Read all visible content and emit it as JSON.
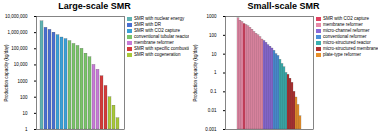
{
  "chart_data": [
    {
      "type": "bar",
      "title": "Large-scale SMR",
      "ylabel": "Production capacity (kg/day)",
      "log": "y",
      "grid": false,
      "legend": "right",
      "tick_labels": "y",
      "categories": [
        null,
        null,
        null,
        null,
        null,
        null,
        null,
        null,
        null,
        null,
        null,
        null,
        null,
        null,
        null,
        null,
        null,
        null,
        null,
        null
      ],
      "ylim": [
        1,
        10000000
      ],
      "yticks": [
        1,
        10,
        100,
        1000,
        {
          "value": 10000,
          "label": "10,000"
        },
        {
          "value": 100000,
          "label": "100,000"
        },
        {
          "value": 1000000,
          "label": "1,000,000"
        },
        {
          "value": 10000000,
          "label": "10,000,000"
        }
      ],
      "series": [
        {
          "name": "SMR with nuclear energy",
          "color": "#5fb3b3",
          "values": [
            5000000,
            null,
            null,
            null,
            null,
            null,
            null,
            null,
            null,
            null,
            null,
            null,
            null,
            null,
            null,
            null,
            null,
            null,
            null,
            null
          ]
        },
        {
          "name": "SMR with DR",
          "color": "#4a6fd1",
          "values": [
            null,
            2000000,
            1500000,
            1000000,
            null,
            null,
            null,
            null,
            null,
            null,
            null,
            null,
            null,
            null,
            null,
            null,
            null,
            null,
            null,
            null
          ]
        },
        {
          "name": "SMR with CO2 capture",
          "color": "#3aa0d8",
          "values": [
            null,
            null,
            null,
            null,
            700000,
            500000,
            400000,
            null,
            null,
            null,
            null,
            null,
            null,
            null,
            null,
            null,
            null,
            null,
            null,
            null
          ]
        },
        {
          "name": "conventional tubular reactor",
          "color": "#7ac36a",
          "values": [
            null,
            null,
            null,
            null,
            null,
            null,
            null,
            300000,
            200000,
            150000,
            100000,
            50000,
            30000,
            null,
            null,
            null,
            null,
            null,
            null,
            null
          ]
        },
        {
          "name": "membrane reformer",
          "color": "#c77ad6",
          "values": [
            null,
            null,
            null,
            null,
            null,
            null,
            null,
            null,
            null,
            null,
            null,
            null,
            null,
            10000,
            5000,
            null,
            null,
            null,
            null,
            null
          ]
        },
        {
          "name": "SMR with specific combustion",
          "color": "#d43a3a",
          "values": [
            null,
            null,
            null,
            null,
            null,
            null,
            null,
            null,
            null,
            null,
            null,
            null,
            null,
            null,
            null,
            2000,
            500,
            null,
            null,
            null
          ]
        },
        {
          "name": "SMR with cogeneration",
          "color": "#a8c83a",
          "values": [
            null,
            null,
            null,
            null,
            null,
            null,
            null,
            null,
            null,
            null,
            null,
            null,
            null,
            null,
            null,
            null,
            null,
            100,
            30,
            5
          ]
        }
      ]
    },
    {
      "type": "bar",
      "title": "Small-scale SMR",
      "ylabel": "Production capacity (kg/day)",
      "log": "y",
      "grid": false,
      "legend": "right",
      "tick_labels": "y",
      "categories": [
        null,
        null,
        null,
        null,
        null,
        null,
        null,
        null,
        null,
        null,
        null,
        null,
        null,
        null,
        null,
        null,
        null,
        null,
        null,
        null,
        null,
        null,
        null,
        null,
        null,
        null,
        null,
        null,
        null,
        null,
        null,
        null
      ],
      "ylim": [
        0.001,
        1000
      ],
      "yticks": [
        0.001,
        0.01,
        0.1,
        1,
        10,
        100,
        1000
      ],
      "series": [
        {
          "name": "SMR with CO2 capture",
          "color": "#e04060",
          "values": [
            null,
            null,
            null,
            400,
            null,
            null,
            null,
            null,
            null,
            null,
            null,
            null,
            null,
            null,
            null,
            null,
            null,
            null,
            null,
            null,
            null,
            null,
            null,
            null,
            null,
            null,
            null,
            null,
            null,
            null,
            null,
            null
          ]
        },
        {
          "name": "membrane reformer",
          "color": "#e88aa8",
          "values": [
            800,
            600,
            500,
            null,
            350,
            300,
            250,
            200,
            150,
            120,
            100,
            80,
            60,
            null,
            null,
            null,
            null,
            null,
            null,
            null,
            null,
            null,
            null,
            null,
            null,
            null,
            null,
            null,
            null,
            null,
            null,
            null
          ]
        },
        {
          "name": "micro-channel reformer",
          "color": "#8a6ad8",
          "values": [
            null,
            null,
            null,
            null,
            null,
            null,
            null,
            null,
            null,
            null,
            null,
            null,
            null,
            50,
            40,
            30,
            25,
            20,
            null,
            null,
            null,
            null,
            null,
            null,
            null,
            null,
            null,
            null,
            null,
            null,
            null,
            null
          ]
        },
        {
          "name": "conventional reformer",
          "color": "#4a90d9",
          "values": [
            null,
            null,
            null,
            null,
            null,
            null,
            null,
            null,
            null,
            null,
            null,
            null,
            null,
            null,
            null,
            null,
            null,
            null,
            15,
            10,
            8,
            null,
            null,
            null,
            null,
            null,
            null,
            null,
            null,
            null,
            null,
            null
          ]
        },
        {
          "name": "micro-structured reactor",
          "color": "#3ab0b0",
          "values": [
            null,
            null,
            null,
            null,
            null,
            null,
            null,
            null,
            null,
            null,
            null,
            null,
            null,
            null,
            null,
            null,
            null,
            null,
            null,
            null,
            null,
            5,
            3,
            2,
            1,
            null,
            null,
            null,
            null,
            null,
            null,
            null
          ]
        },
        {
          "name": "micro-structured membrane reformer",
          "color": "#b03030",
          "values": [
            null,
            null,
            null,
            null,
            null,
            null,
            null,
            null,
            null,
            null,
            null,
            null,
            null,
            null,
            null,
            null,
            null,
            null,
            null,
            null,
            null,
            null,
            null,
            null,
            null,
            0.8,
            0.5,
            0.3,
            0.1,
            null,
            null,
            null
          ]
        },
        {
          "name": "plate-type reformer",
          "color": "#e8902a",
          "values": [
            null,
            null,
            null,
            null,
            null,
            null,
            null,
            null,
            null,
            null,
            null,
            null,
            null,
            null,
            null,
            null,
            null,
            null,
            null,
            null,
            null,
            null,
            null,
            null,
            null,
            null,
            null,
            null,
            null,
            0.05,
            0.02,
            0.005
          ]
        }
      ]
    }
  ]
}
